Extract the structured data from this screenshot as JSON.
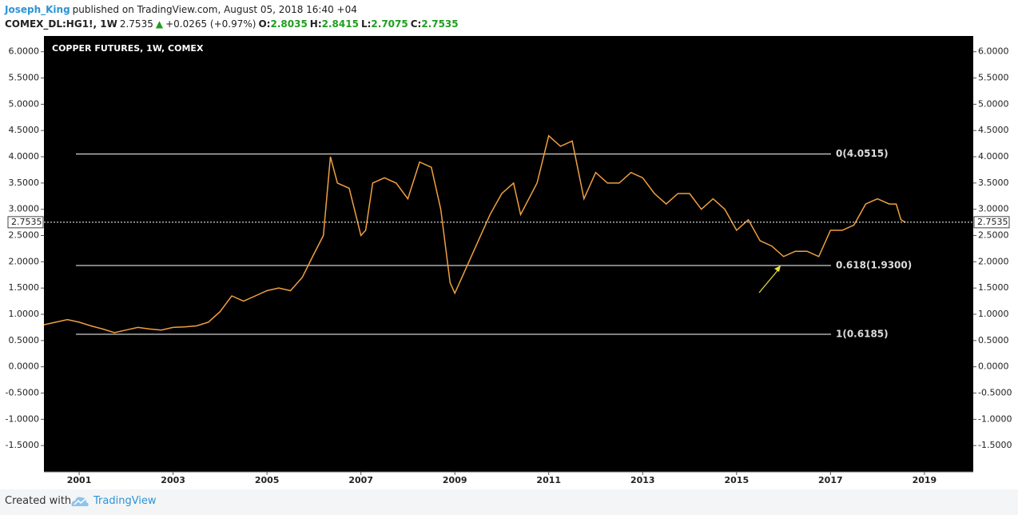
{
  "header": {
    "author": "Joseph_King",
    "published": "published on TradingView.com, August 05, 2018 16:40 +04",
    "symbol": "COMEX_DL:HG1!, 1W",
    "change": "+0.0265 (+0.97%)",
    "ohlc": [
      {
        "label": "O:",
        "value": "2.8035"
      },
      {
        "label": "H:",
        "value": "2.8415"
      },
      {
        "label": "L:",
        "value": "2.7075"
      },
      {
        "label": "C:",
        "value": "2.7535"
      }
    ]
  },
  "chart_data": {
    "type": "line",
    "title": "COPPER FUTURES, 1W, COMEX",
    "color": "#f0a040",
    "x": [
      2000.25,
      2000.5,
      2000.75,
      2001.0,
      2001.25,
      2001.5,
      2001.75,
      2002.0,
      2002.25,
      2002.5,
      2002.75,
      2003.0,
      2003.25,
      2003.5,
      2003.75,
      2004.0,
      2004.25,
      2004.5,
      2004.75,
      2005.0,
      2005.25,
      2005.5,
      2005.75,
      2006.0,
      2006.2,
      2006.35,
      2006.5,
      2006.75,
      2007.0,
      2007.1,
      2007.25,
      2007.5,
      2007.75,
      2008.0,
      2008.25,
      2008.5,
      2008.7,
      2008.9,
      2009.0,
      2009.25,
      2009.5,
      2009.75,
      2010.0,
      2010.25,
      2010.4,
      2010.75,
      2011.0,
      2011.25,
      2011.5,
      2011.75,
      2012.0,
      2012.25,
      2012.5,
      2012.75,
      2013.0,
      2013.25,
      2013.5,
      2013.75,
      2014.0,
      2014.25,
      2014.5,
      2014.75,
      2015.0,
      2015.25,
      2015.5,
      2015.75,
      2016.0,
      2016.25,
      2016.5,
      2016.75,
      2017.0,
      2017.25,
      2017.5,
      2017.75,
      2018.0,
      2018.25,
      2018.4,
      2018.5,
      2018.6
    ],
    "values": [
      0.8,
      0.85,
      0.9,
      0.85,
      0.78,
      0.72,
      0.65,
      0.7,
      0.75,
      0.72,
      0.7,
      0.75,
      0.76,
      0.78,
      0.85,
      1.05,
      1.35,
      1.25,
      1.35,
      1.45,
      1.5,
      1.45,
      1.7,
      2.15,
      2.5,
      4.0,
      3.5,
      3.4,
      2.5,
      2.6,
      3.5,
      3.6,
      3.5,
      3.2,
      3.9,
      3.8,
      3.0,
      1.6,
      1.4,
      1.9,
      2.4,
      2.9,
      3.3,
      3.5,
      2.9,
      3.5,
      4.4,
      4.2,
      4.3,
      3.2,
      3.7,
      3.5,
      3.5,
      3.7,
      3.6,
      3.3,
      3.1,
      3.3,
      3.3,
      3.0,
      3.2,
      3.0,
      2.6,
      2.8,
      2.4,
      2.3,
      2.1,
      2.2,
      2.2,
      2.1,
      2.6,
      2.6,
      2.7,
      3.1,
      3.2,
      3.1,
      3.1,
      2.8,
      2.75
    ],
    "xlim": [
      2000.25,
      2020.04
    ],
    "xticks": [
      2001,
      2003,
      2005,
      2007,
      2009,
      2011,
      2013,
      2015,
      2017,
      2019
    ],
    "ylim": [
      -2.0,
      6.3
    ],
    "yticks": [
      {
        "value": 6,
        "label": "6.0000"
      },
      {
        "value": 5.5,
        "label": "5.5000"
      },
      {
        "value": 5,
        "label": "5.0000"
      },
      {
        "value": 4.5,
        "label": "4.5000"
      },
      {
        "value": 4,
        "label": "4.0000"
      },
      {
        "value": 3.5,
        "label": "3.5000"
      },
      {
        "value": 3,
        "label": "3.0000"
      },
      {
        "value": 2.5,
        "label": "2.5000"
      },
      {
        "value": 2,
        "label": "2.0000"
      },
      {
        "value": 1.5,
        "label": "1.5000"
      },
      {
        "value": 1,
        "label": "1.0000"
      },
      {
        "value": 0.5,
        "label": "0.5000"
      },
      {
        "value": 0,
        "label": "0.0000"
      },
      {
        "value": -0.5,
        "label": "-0.5000"
      },
      {
        "value": -1,
        "label": "-1.0000"
      },
      {
        "value": -1.5,
        "label": "-1.5000"
      }
    ],
    "price_line": {
      "value": 2.7535,
      "label": "2.7535"
    },
    "levels": [
      {
        "value": 4.0515,
        "label": "0(4.0515)"
      },
      {
        "value": 1.93,
        "label": "0.618(1.9300)"
      },
      {
        "value": 0.6185,
        "label": "1(0.6185)"
      }
    ]
  },
  "footer": {
    "prefix": "Created with",
    "brand": "TradingView"
  }
}
